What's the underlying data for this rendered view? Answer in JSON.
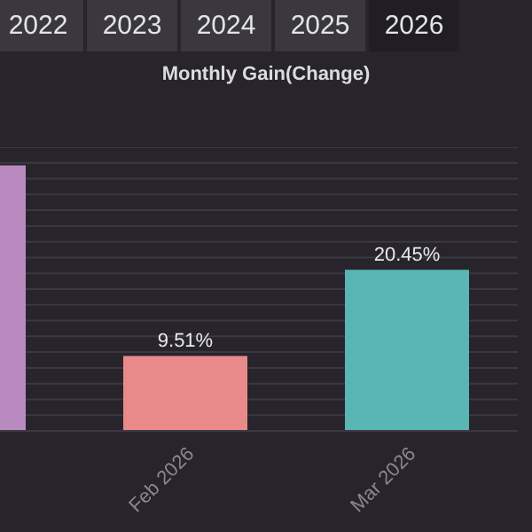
{
  "chart_data": {
    "type": "bar",
    "title": "Monthly Gain(Change)",
    "annotations": [
      "2022",
      "2023",
      "2024",
      "2025",
      "2026"
    ],
    "categories": [
      null,
      "Feb 2026",
      "Mar 2026"
    ],
    "values": [
      33.7,
      9.51,
      20.45
    ],
    "colors": [
      "#b88ac0",
      "#e8898a",
      "#5ab5b5"
    ],
    "value_labels": [
      null,
      "9.51%",
      "20.45%"
    ],
    "ylim": [
      0,
      36
    ],
    "yticks": [
      {
        "value": 0,
        "label": null
      },
      {
        "value": 2,
        "label": null
      },
      {
        "value": 4,
        "label": null
      },
      {
        "value": 6,
        "label": null
      },
      {
        "value": 8,
        "label": null
      },
      {
        "value": 10,
        "label": null
      },
      {
        "value": 12,
        "label": null
      },
      {
        "value": 14,
        "label": null
      },
      {
        "value": 16,
        "label": null
      },
      {
        "value": 18,
        "label": null
      },
      {
        "value": 20,
        "label": null
      },
      {
        "value": 22,
        "label": null
      },
      {
        "value": 24,
        "label": null
      },
      {
        "value": 26,
        "label": null
      },
      {
        "value": 28,
        "label": null
      },
      {
        "value": 30,
        "label": null
      },
      {
        "value": 32,
        "label": null
      },
      {
        "value": 34,
        "label": null
      },
      {
        "value": 36,
        "label": null
      }
    ],
    "grid": "y",
    "tick_labels": "x"
  }
}
